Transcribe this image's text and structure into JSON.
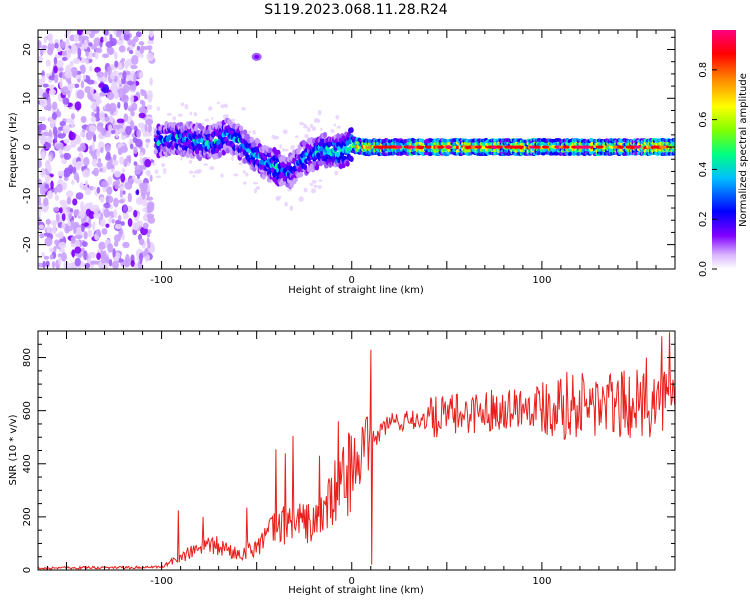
{
  "title": "S119.2023.068.11.28.R24",
  "chart_data": [
    {
      "type": "heatmap",
      "xlabel": "Height of straight line (km)",
      "ylabel": "Frequency (Hz)",
      "xlim": [
        -165,
        170
      ],
      "ylim": [
        -25,
        24
      ],
      "xticks": [
        -100,
        0,
        100
      ],
      "yticks": [
        -20,
        -10,
        0,
        10,
        20
      ],
      "colorbar": {
        "label": "Normalized spectral amplitude",
        "range": [
          0,
          0.96
        ],
        "ticks": [
          0.0,
          0.2,
          0.4,
          0.6,
          0.8
        ],
        "colors": [
          "#ffffff",
          "#8000ff",
          "#0000ff",
          "#00c0ff",
          "#00ff80",
          "#80ff00",
          "#ffff00",
          "#ff8000",
          "#ff0000",
          "#ff0080"
        ]
      },
      "noise_region": {
        "x": [
          -165,
          -105
        ],
        "y": [
          -25,
          24
        ]
      },
      "ridge": {
        "x": [
          -103,
          -95,
          -85,
          -75,
          -65,
          -60,
          -52,
          -45,
          -38,
          -32,
          -28,
          -22,
          -15,
          -8,
          -3,
          0,
          5,
          20,
          40,
          60,
          80,
          100,
          120,
          140,
          160,
          170
        ],
        "y": [
          1,
          2,
          1.5,
          0.5,
          2.5,
          1.5,
          -1.5,
          -3,
          -4.5,
          -5,
          -3,
          -1.5,
          -0.5,
          -1,
          -0.5,
          0.5,
          0,
          0,
          0,
          0,
          0,
          0,
          0,
          0,
          0,
          0
        ]
      },
      "feature": {
        "x": -50,
        "y": 18.5
      }
    },
    {
      "type": "line",
      "xlabel": "Height of straight line (km)",
      "ylabel": "SNR (10 * v/v)",
      "xlim": [
        -165,
        170
      ],
      "ylim": [
        0,
        900
      ],
      "xticks": [
        -100,
        0,
        100
      ],
      "yticks": [
        0,
        200,
        400,
        600,
        800
      ],
      "color": "#e8201c",
      "trend": {
        "x": [
          -165,
          -100,
          -95,
          -80,
          -70,
          -60,
          -50,
          -40,
          -30,
          -20,
          -10,
          -5,
          0,
          10,
          20,
          30,
          40,
          50,
          60,
          80,
          100,
          120,
          140,
          160,
          170
        ],
        "y": [
          8,
          10,
          30,
          80,
          90,
          60,
          90,
          160,
          190,
          170,
          270,
          340,
          390,
          480,
          560,
          560,
          570,
          580,
          590,
          610,
          625,
          620,
          620,
          630,
          640
        ]
      },
      "spikes": [
        {
          "x": -91,
          "y": 225
        },
        {
          "x": -78,
          "y": 200
        },
        {
          "x": -55,
          "y": 235
        },
        {
          "x": -40,
          "y": 455
        },
        {
          "x": -35,
          "y": 440
        },
        {
          "x": -31,
          "y": 505
        },
        {
          "x": -17,
          "y": 430
        },
        {
          "x": -7,
          "y": 560
        },
        {
          "x": 10,
          "y": 830
        },
        {
          "x": 10.5,
          "y": 20
        },
        {
          "x": 32,
          "y": 600
        },
        {
          "x": 55,
          "y": 660
        },
        {
          "x": 110,
          "y": 720
        },
        {
          "x": 155,
          "y": 800
        },
        {
          "x": 163,
          "y": 880
        },
        {
          "x": 167,
          "y": 895
        }
      ]
    }
  ]
}
